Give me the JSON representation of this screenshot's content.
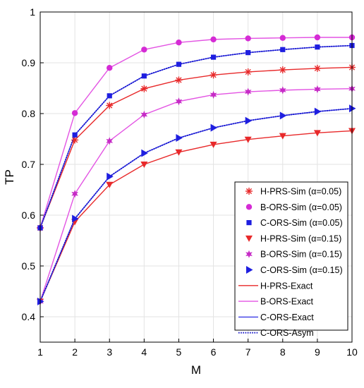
{
  "chart_data": {
    "type": "line",
    "title": "",
    "xlabel": "M",
    "ylabel": "TP",
    "xlim": [
      1,
      10
    ],
    "ylim": [
      0.35,
      1.0
    ],
    "xticks": [
      "1",
      "2",
      "3",
      "4",
      "5",
      "6",
      "7",
      "8",
      "9",
      "10"
    ],
    "yticks": [
      "0.4",
      "0.5",
      "0.6",
      "0.7",
      "0.8",
      "0.9",
      "1"
    ],
    "grid": true,
    "legend_position": "bottom-right",
    "x": [
      1,
      2,
      3,
      4,
      5,
      6,
      7,
      8,
      9,
      10
    ],
    "series": [
      {
        "name": "H-PRS-Sim (α=0.05)",
        "alpha": "α",
        "param": "=0.05",
        "color": "#e8292a",
        "marker": "asterisk",
        "line": "none",
        "values": [
          0.575,
          0.748,
          0.816,
          0.849,
          0.866,
          0.876,
          0.882,
          0.886,
          0.889,
          0.891
        ]
      },
      {
        "name": "B-ORS-Sim (α=0.05)",
        "alpha": "α",
        "param": "=0.05",
        "color": "#d52bd5",
        "marker": "circle",
        "line": "none",
        "values": [
          0.575,
          0.801,
          0.89,
          0.926,
          0.94,
          0.946,
          0.948,
          0.949,
          0.95,
          0.95
        ]
      },
      {
        "name": "C-ORS-Sim (α=0.05)",
        "alpha": "α",
        "param": "=0.05",
        "color": "#1e1ee0",
        "marker": "square",
        "line": "none",
        "values": [
          0.575,
          0.758,
          0.835,
          0.874,
          0.897,
          0.911,
          0.92,
          0.926,
          0.931,
          0.934
        ]
      },
      {
        "name": "H-PRS-Sim (α=0.15)",
        "alpha": "α",
        "param": "=0.15",
        "color": "#e8292a",
        "marker": "triangle-down",
        "line": "none",
        "values": [
          0.43,
          0.587,
          0.66,
          0.7,
          0.724,
          0.739,
          0.749,
          0.756,
          0.762,
          0.766
        ]
      },
      {
        "name": "B-ORS-Sim (α=0.15)",
        "alpha": "α",
        "param": "=0.15",
        "color": "#c62bc6",
        "marker": "hexagram",
        "line": "none",
        "values": [
          0.43,
          0.642,
          0.746,
          0.798,
          0.824,
          0.837,
          0.843,
          0.846,
          0.848,
          0.849
        ]
      },
      {
        "name": "C-ORS-Sim (α=0.15)",
        "alpha": "α",
        "param": "=0.15",
        "color": "#1e1ee0",
        "marker": "triangle-right",
        "line": "none",
        "values": [
          0.43,
          0.593,
          0.676,
          0.722,
          0.752,
          0.772,
          0.786,
          0.796,
          0.804,
          0.81
        ]
      },
      {
        "name": "H-PRS-Exact",
        "color": "#e8292a",
        "marker": "none",
        "line": "solid",
        "curves": [
          [
            0.575,
            0.748,
            0.816,
            0.849,
            0.866,
            0.876,
            0.882,
            0.886,
            0.889,
            0.891
          ],
          [
            0.43,
            0.587,
            0.66,
            0.7,
            0.724,
            0.739,
            0.749,
            0.756,
            0.762,
            0.766
          ]
        ]
      },
      {
        "name": "B-ORS-Exact",
        "color": "#e354e3",
        "marker": "none",
        "line": "solid",
        "curves": [
          [
            0.575,
            0.801,
            0.89,
            0.926,
            0.94,
            0.946,
            0.948,
            0.949,
            0.95,
            0.95
          ],
          [
            0.43,
            0.642,
            0.746,
            0.798,
            0.824,
            0.837,
            0.843,
            0.846,
            0.848,
            0.849
          ]
        ]
      },
      {
        "name": "C-ORS-Exact",
        "color": "#3a3ae6",
        "marker": "none",
        "line": "solid",
        "curves": [
          [
            0.575,
            0.758,
            0.835,
            0.874,
            0.897,
            0.911,
            0.92,
            0.926,
            0.931,
            0.934
          ],
          [
            0.43,
            0.593,
            0.676,
            0.722,
            0.752,
            0.772,
            0.786,
            0.796,
            0.804,
            0.81
          ]
        ]
      },
      {
        "name": "C-ORS-Asym",
        "color": "#1010c8",
        "marker": "none",
        "line": "dotted",
        "curves": [
          [
            0.575,
            0.758,
            0.835,
            0.874,
            0.897,
            0.911,
            0.92,
            0.926,
            0.931,
            0.934
          ],
          [
            0.43,
            0.593,
            0.676,
            0.722,
            0.752,
            0.772,
            0.786,
            0.796,
            0.804,
            0.81
          ]
        ]
      }
    ]
  }
}
